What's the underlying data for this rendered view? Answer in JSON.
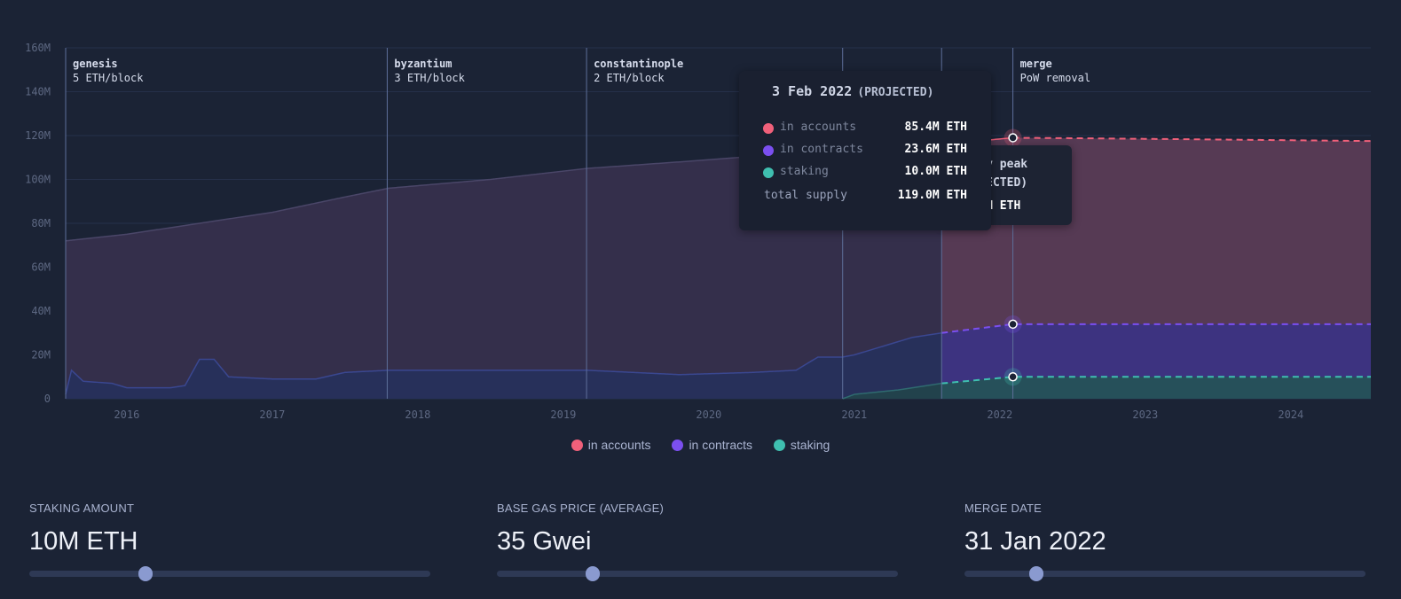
{
  "chart_data": {
    "type": "area",
    "stacked": true,
    "ylim": [
      0,
      160
    ],
    "yticks": [
      "0",
      "20M",
      "40M",
      "60M",
      "80M",
      "100M",
      "120M",
      "140M",
      "160M"
    ],
    "xlim": [
      2015.58,
      2024.55
    ],
    "xticks": [
      "2016",
      "2017",
      "2018",
      "2019",
      "2020",
      "2021",
      "2022",
      "2023",
      "2024"
    ],
    "grid": true,
    "legend_position": "bottom",
    "projected_from": 2021.6,
    "series": [
      {
        "name": "in accounts",
        "color": "#f0607a",
        "x": [
          2015.58,
          2016.0,
          2016.5,
          2017.0,
          2017.5,
          2017.8,
          2018.5,
          2019.16,
          2019.8,
          2020.2,
          2020.92,
          2021.6,
          2022.09,
          2022.5,
          2023.5,
          2024.55
        ],
        "total": [
          72,
          75,
          80,
          85,
          92,
          96,
          100,
          105,
          108,
          110,
          112,
          116,
          119,
          118.8,
          118.2,
          117.5
        ]
      },
      {
        "name": "in contracts",
        "color": "#7b4ff0",
        "x": [
          2015.58,
          2015.62,
          2015.7,
          2015.9,
          2016.0,
          2016.3,
          2016.4,
          2016.5,
          2016.6,
          2016.7,
          2017.0,
          2017.3,
          2017.5,
          2017.8,
          2018.3,
          2019.16,
          2019.8,
          2020.3,
          2020.6,
          2020.75,
          2020.92,
          2021.0,
          2021.2,
          2021.4,
          2021.6,
          2022.09,
          2024.55
        ],
        "top": [
          2,
          13,
          8,
          7,
          5,
          5,
          6,
          18,
          18,
          10,
          9,
          9,
          12,
          13,
          13,
          13,
          11,
          12,
          13,
          19,
          19,
          20,
          24,
          28,
          30,
          34,
          34
        ]
      },
      {
        "name": "staking",
        "color": "#3fbfb0",
        "x": [
          2020.92,
          2021.0,
          2021.3,
          2021.6,
          2022.09,
          2024.55
        ],
        "top": [
          0,
          2,
          4,
          7,
          10,
          10
        ]
      }
    ],
    "events": [
      {
        "x": 2015.58,
        "name": "genesis",
        "note": "5 ETH/block"
      },
      {
        "x": 2017.79,
        "name": "byzantium",
        "note": "3 ETH/block"
      },
      {
        "x": 2019.16,
        "name": "constantinople",
        "note": "2 ETH/block"
      },
      {
        "x": 2020.92,
        "name": "",
        "note": ""
      },
      {
        "x": 2021.6,
        "name": "",
        "note": ""
      },
      {
        "x": 2022.09,
        "name": "merge",
        "note": "PoW removal"
      }
    ]
  },
  "tooltip": {
    "date": "3 Feb 2022",
    "tag": "(PROJECTED)",
    "rows": [
      {
        "label": "in accounts",
        "value": "85.4M ETH",
        "color": "#f0607a"
      },
      {
        "label": "in contracts",
        "value": "23.6M ETH",
        "color": "#7b4ff0"
      },
      {
        "label": "staking",
        "value": "10.0M ETH",
        "color": "#3fbfb0"
      }
    ],
    "total_label": "total supply",
    "total_value": "119.0M ETH"
  },
  "peak_tooltip": {
    "title": "supply peak",
    "tag": "(PROJECTED)",
    "value": "119.0M ETH"
  },
  "legend": [
    {
      "label": "in accounts",
      "color": "#f0607a"
    },
    {
      "label": "in contracts",
      "color": "#7b4ff0"
    },
    {
      "label": "staking",
      "color": "#3fbfb0"
    }
  ],
  "controls": [
    {
      "label": "STAKING AMOUNT",
      "value": "10M ETH",
      "level": 0.29
    },
    {
      "label": "BASE GAS PRICE (AVERAGE)",
      "value": "35 Gwei",
      "level": 0.24
    },
    {
      "label": "MERGE DATE",
      "value": "31 Jan 2022",
      "level": 0.18
    }
  ]
}
